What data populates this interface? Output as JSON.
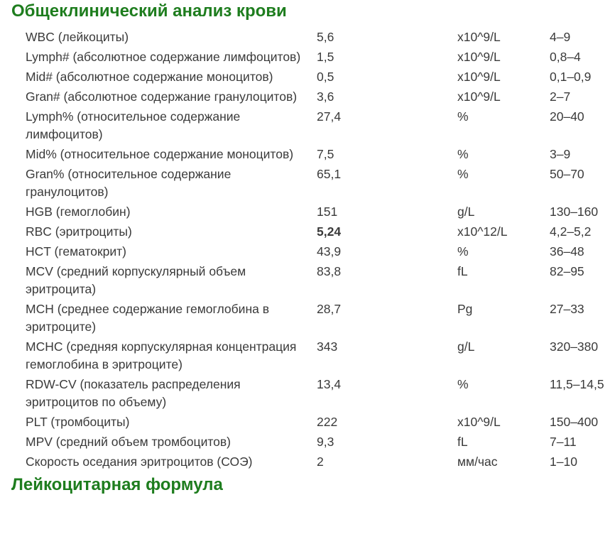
{
  "report": {
    "title": "Общеклинический анализ крови",
    "next_section_title": "Лейкоцитарная формула",
    "colors": {
      "heading": "#1e7d1e",
      "text": "#3a3a3a"
    },
    "rows": [
      {
        "name": "WBC (лейкоциты)",
        "value": "5,6",
        "unit": "x10^9/L",
        "range": "4–9",
        "value_bold": false
      },
      {
        "name": "Lymph# (абсолютное содержание лимфоцитов)",
        "value": "1,5",
        "unit": "x10^9/L",
        "range": "0,8–4",
        "value_bold": false
      },
      {
        "name": "Mid# (абсолютное содержание моноцитов)",
        "value": "0,5",
        "unit": "x10^9/L",
        "range": "0,1–0,9",
        "value_bold": false
      },
      {
        "name": "Gran# (абсолютное содержание гранулоцитов)",
        "value": "3,6",
        "unit": "x10^9/L",
        "range": "2–7",
        "value_bold": false
      },
      {
        "name": "Lymph% (относительное содержание лимфоцитов)",
        "value": "27,4",
        "unit": "%",
        "range": "20–40",
        "value_bold": false
      },
      {
        "name": "Mid% (относительное содержание моноцитов)",
        "value": "7,5",
        "unit": "%",
        "range": "3–9",
        "value_bold": false
      },
      {
        "name": "Gran% (относительное содержание гранулоцитов)",
        "value": "65,1",
        "unit": "%",
        "range": "50–70",
        "value_bold": false
      },
      {
        "name": "HGB (гемоглобин)",
        "value": "151",
        "unit": "g/L",
        "range": "130–160",
        "value_bold": false
      },
      {
        "name": "RBC (эритроциты)",
        "value": "5,24",
        "unit": "x10^12/L",
        "range": "4,2–5,2",
        "value_bold": true
      },
      {
        "name": "HCT (гематокрит)",
        "value": "43,9",
        "unit": "%",
        "range": "36–48",
        "value_bold": false
      },
      {
        "name": "MCV (средний корпускулярный объем эритроцита)",
        "value": "83,8",
        "unit": "fL",
        "range": "82–95",
        "value_bold": false
      },
      {
        "name": "MCH (среднее содержание гемоглобина в эритроците)",
        "value": "28,7",
        "unit": "Pg",
        "range": "27–33",
        "value_bold": false
      },
      {
        "name": "MCHC (средняя корпускулярная концентрация гемоглобина в эритроците)",
        "value": "343",
        "unit": "g/L",
        "range": "320–380",
        "value_bold": false
      },
      {
        "name": "RDW-CV (показатель распределения эритроцитов по объему)",
        "value": "13,4",
        "unit": "%",
        "range": "11,5–14,5",
        "value_bold": false
      },
      {
        "name": "PLT (тромбоциты)",
        "value": "222",
        "unit": "x10^9/L",
        "range": "150–400",
        "value_bold": false
      },
      {
        "name": "MPV (средний объем тромбоцитов)",
        "value": "9,3",
        "unit": "fL",
        "range": "7–11",
        "value_bold": false
      },
      {
        "name": "Скорость оседания эритроцитов (СОЭ)",
        "value": "2",
        "unit": "мм/час",
        "range": "1–10",
        "value_bold": false
      }
    ]
  }
}
